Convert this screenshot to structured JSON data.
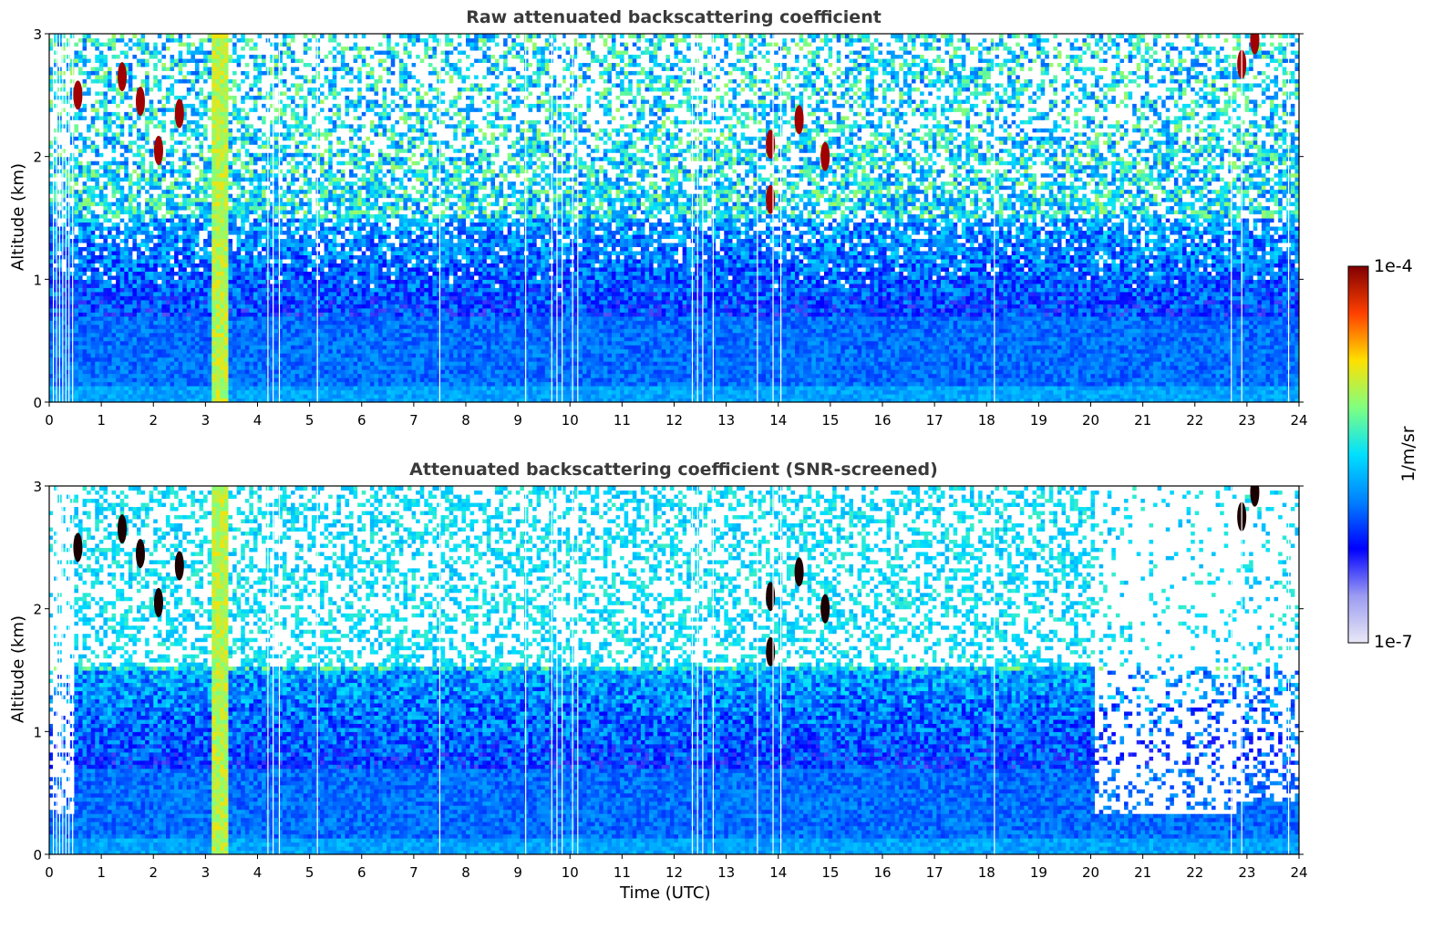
{
  "chart_data": [
    {
      "type": "heatmap",
      "title": "Raw attenuated backscattering coefficient",
      "xlabel": "",
      "ylabel": "Altitude (km)",
      "xlim": [
        0,
        24
      ],
      "ylim": [
        0,
        3
      ],
      "xticks": [
        "0",
        "1",
        "2",
        "3",
        "4",
        "5",
        "6",
        "7",
        "8",
        "9",
        "10",
        "11",
        "12",
        "13",
        "14",
        "15",
        "16",
        "17",
        "18",
        "19",
        "20",
        "21",
        "22",
        "23",
        "24"
      ],
      "yticks": [
        "0",
        "1",
        "2",
        "3"
      ],
      "features": {
        "background_gradient": "near-surface values ~1e-6 (blue) increasing noise with altitude; above ~1.5 km noisy cyan/green values",
        "precipitation_column": {
          "x_start": 3.1,
          "x_end": 3.45,
          "value": "1e-5 (yellow/green) full column"
        },
        "clouds": [
          {
            "x": 0.55,
            "y": 2.5,
            "value": "1e-4"
          },
          {
            "x": 1.4,
            "y": 2.65,
            "value": "1e-4"
          },
          {
            "x": 1.75,
            "y": 2.45,
            "value": "1e-4"
          },
          {
            "x": 2.1,
            "y": 2.05,
            "value": "1e-4"
          },
          {
            "x": 2.5,
            "y": 2.35,
            "value": "1e-4"
          },
          {
            "x": 13.85,
            "y": 1.65,
            "value": "1e-4"
          },
          {
            "x": 13.85,
            "y": 2.1,
            "value": "1e-4"
          },
          {
            "x": 14.4,
            "y": 2.3,
            "value": "1e-4"
          },
          {
            "x": 14.9,
            "y": 2.0,
            "value": "1e-4"
          },
          {
            "x": 22.9,
            "y": 2.75,
            "value": "1e-4"
          },
          {
            "x": 23.15,
            "y": 2.95,
            "value": "1e-4"
          }
        ],
        "missing_data_time_lines": [
          0.08,
          0.14,
          0.2,
          0.26,
          0.32,
          0.38,
          0.45,
          4.2,
          4.3,
          4.42,
          5.15,
          7.5,
          9.15,
          9.65,
          9.75,
          9.85,
          10.05,
          10.15,
          12.35,
          12.45,
          12.55,
          12.75,
          13.6,
          13.9,
          14.05,
          18.15,
          22.7,
          22.9,
          23.8
        ]
      }
    },
    {
      "type": "heatmap",
      "title": "Attenuated backscattering coefficient (SNR-screened)",
      "xlabel": "Time (UTC)",
      "ylabel": "Altitude (km)",
      "xlim": [
        0,
        24
      ],
      "ylim": [
        0,
        3
      ],
      "xticks": [
        "0",
        "1",
        "2",
        "3",
        "4",
        "5",
        "6",
        "7",
        "8",
        "9",
        "10",
        "11",
        "12",
        "13",
        "14",
        "15",
        "16",
        "17",
        "18",
        "19",
        "20",
        "21",
        "22",
        "23",
        "24"
      ],
      "yticks": [
        "0",
        "1",
        "2",
        "3"
      ],
      "features": {
        "screening": "low-SNR pixels masked white; sparse coverage above ~1.6 km; many screened columns after 20 UTC down to ~0.3 km"
      }
    }
  ],
  "colorbar": {
    "label": "1/m/sr",
    "max_label": "1e-4",
    "min_label": "1e-7",
    "scale": "log",
    "colormap": "jet",
    "colors": [
      "#e8e8f6",
      "#9b9bf2",
      "#0000ff",
      "#0080ff",
      "#00e0ff",
      "#80ff80",
      "#ffe000",
      "#ff4000",
      "#800000"
    ]
  }
}
